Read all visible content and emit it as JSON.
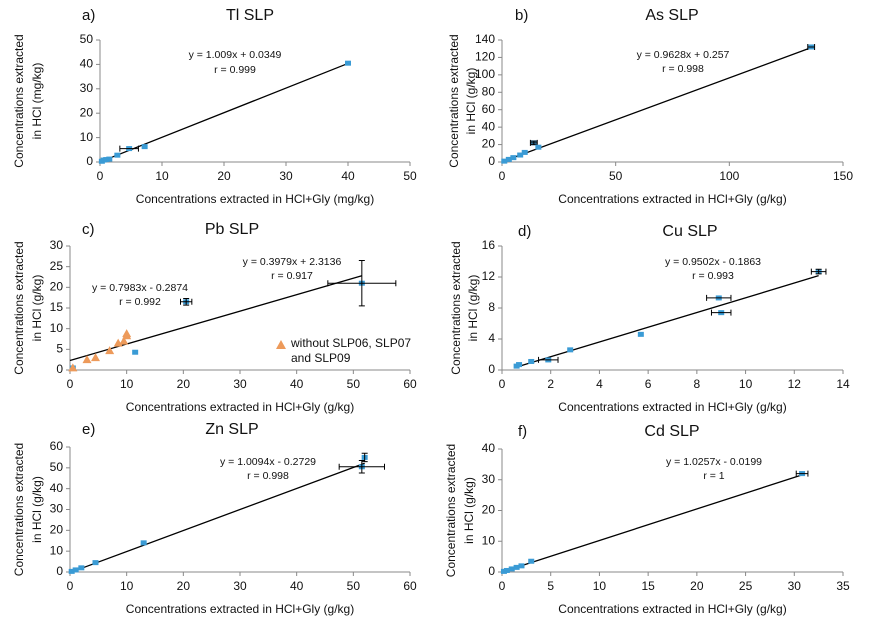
{
  "chart_data": [
    {
      "type": "scatter",
      "panel": "a)",
      "title": "Tl SLP",
      "xlabel": "Concentrations extracted in HCl+Gly (mg/kg)",
      "ylabel": [
        "Concentrations extracted",
        "in HCl  (mg/kg)"
      ],
      "xlim": [
        0,
        50
      ],
      "xticks": [
        0,
        10,
        20,
        30,
        40,
        50
      ],
      "ylim": [
        0,
        50
      ],
      "yticks": [
        0,
        10,
        20,
        30,
        40,
        50
      ],
      "series": [
        {
          "color": "#3a9bd5",
          "marker": "square",
          "x": [
            0.3,
            0.6,
            1,
            1.5,
            2.8,
            4.7,
            7.2,
            40
          ],
          "values": [
            0.3,
            0.8,
            1,
            1.2,
            2.8,
            5.5,
            6.3,
            40.5
          ],
          "xerr": [
            null,
            null,
            null,
            null,
            null,
            1.5,
            null,
            null
          ],
          "yerr": [
            null,
            null,
            null,
            null,
            null,
            null,
            null,
            null
          ]
        }
      ],
      "trendlines": [
        {
          "x": [
            0,
            40
          ],
          "values": [
            0.03,
            40.39
          ]
        }
      ],
      "annotations": [
        "y = 1.009x + 0.0349",
        "r = 0.999"
      ]
    },
    {
      "type": "scatter",
      "panel": "b)",
      "title": "As SLP",
      "xlabel": "Concentrations extracted in HCl+Gly (g/kg)",
      "ylabel": [
        "Concentrations extracted",
        "in HCl  (g/kg)"
      ],
      "xlim": [
        0,
        150
      ],
      "xticks": [
        0,
        50,
        100,
        150
      ],
      "ylim": [
        0,
        140
      ],
      "yticks": [
        0,
        20,
        40,
        60,
        80,
        100,
        120,
        140
      ],
      "series": [
        {
          "color": "#3a9bd5",
          "marker": "square",
          "x": [
            1,
            3,
            5,
            8,
            10,
            14,
            16,
            136
          ],
          "values": [
            1,
            3,
            5,
            8,
            11,
            22,
            17,
            132
          ],
          "xerr": [
            null,
            null,
            null,
            null,
            null,
            1.5,
            null,
            1.5
          ],
          "yerr": [
            null,
            null,
            null,
            null,
            null,
            2,
            null,
            null
          ]
        }
      ],
      "trendlines": [
        {
          "x": [
            0,
            136
          ],
          "values": [
            0.26,
            131.2
          ]
        }
      ],
      "annotations": [
        "y = 0.9628x + 0.257",
        "r = 0.998"
      ]
    },
    {
      "type": "scatter",
      "panel": "c)",
      "title": "Pb SLP",
      "xlabel": "Concentrations extracted in HCl+Gly (g/kg)",
      "ylabel": [
        "Concentrations extracted",
        "in HCl  (g/kg)"
      ],
      "xlim": [
        0,
        60
      ],
      "xticks": [
        0,
        10,
        20,
        30,
        40,
        50,
        60
      ],
      "ylim": [
        0,
        30
      ],
      "yticks": [
        0,
        5,
        10,
        15,
        20,
        25,
        30
      ],
      "series": [
        {
          "color": "#3a9bd5",
          "marker": "square",
          "x": [
            0.5,
            11.5,
            20.5,
            51.5
          ],
          "values": [
            0.5,
            4.3,
            16.5,
            21
          ],
          "xerr": [
            null,
            null,
            1,
            6
          ],
          "yerr": [
            null,
            null,
            0.8,
            5.5
          ]
        },
        {
          "name": "without SLP06, SLP07 and SLP09",
          "color": "#ed9a5a",
          "marker": "triangle",
          "x": [
            0.5,
            3,
            4.5,
            7,
            8.5,
            9.5,
            10,
            10
          ],
          "values": [
            0.5,
            2.5,
            3,
            4.7,
            6.5,
            7,
            8.3,
            8.8
          ],
          "xerr": [
            null,
            null,
            null,
            null,
            null,
            null,
            null,
            null
          ],
          "yerr": [
            null,
            null,
            null,
            null,
            null,
            null,
            null,
            null
          ]
        }
      ],
      "trendlines": [
        {
          "x": [
            0,
            51.5
          ],
          "values": [
            2.31,
            22.8
          ]
        }
      ],
      "annotations": [
        "y = 0.3979x + 2.3136",
        "r = 0.917",
        "y = 0.7983x - 0.2874",
        "r = 0.992"
      ]
    },
    {
      "type": "scatter",
      "panel": "d)",
      "title": "Cu SLP",
      "xlabel": "Concentrations extracted in HCl+Gly (g/kg)",
      "ylabel": [
        "Concentrations extracted",
        "in HCl  (g/kg)"
      ],
      "xlim": [
        0,
        14
      ],
      "xticks": [
        0,
        2,
        4,
        6,
        8,
        10,
        12,
        14
      ],
      "ylim": [
        0,
        16
      ],
      "yticks": [
        0,
        4,
        8,
        12,
        16
      ],
      "series": [
        {
          "color": "#3a9bd5",
          "marker": "square",
          "x": [
            0.6,
            0.7,
            1.2,
            1.9,
            2.8,
            5.7,
            8.9,
            9,
            13
          ],
          "values": [
            0.5,
            0.7,
            1.1,
            1.3,
            2.6,
            4.6,
            9.3,
            7.4,
            12.7
          ],
          "xerr": [
            null,
            null,
            null,
            0.4,
            null,
            null,
            0.5,
            0.4,
            0.3
          ],
          "yerr": [
            null,
            null,
            null,
            null,
            null,
            null,
            null,
            null,
            0.3
          ]
        }
      ],
      "trendlines": [
        {
          "x": [
            0.5,
            13
          ],
          "values": [
            0.29,
            12.17
          ]
        }
      ],
      "annotations": [
        "y = 0.9502x - 0.1863",
        "r = 0.993"
      ]
    },
    {
      "type": "scatter",
      "panel": "e)",
      "title": "Zn SLP",
      "xlabel": "Concentrations extracted in HCl+Gly (g/kg)",
      "ylabel": [
        "Concentrations extracted",
        "in HCl  (g/kg)"
      ],
      "xlim": [
        0,
        60
      ],
      "xticks": [
        0,
        10,
        20,
        30,
        40,
        50,
        60
      ],
      "ylim": [
        0,
        60
      ],
      "yticks": [
        0,
        10,
        20,
        30,
        40,
        50,
        60
      ],
      "series": [
        {
          "color": "#3a9bd5",
          "marker": "square",
          "x": [
            0.3,
            1,
            2,
            4.5,
            13,
            52,
            51.5
          ],
          "values": [
            0.3,
            1,
            2,
            4.5,
            14,
            55,
            50.5
          ],
          "xerr": [
            null,
            null,
            null,
            null,
            null,
            null,
            4
          ],
          "yerr": [
            null,
            null,
            null,
            null,
            null,
            2,
            3
          ]
        }
      ],
      "trendlines": [
        {
          "x": [
            0,
            52
          ],
          "values": [
            -0.27,
            52.2
          ]
        }
      ],
      "annotations": [
        "y = 1.0094x - 0.2729",
        "r = 0.998"
      ]
    },
    {
      "type": "scatter",
      "panel": "f)",
      "title": "Cd SLP",
      "xlabel": "Concentrations extracted in HCl+Gly (g/kg)",
      "ylabel": [
        "Concentrations extracted",
        "in HCl  (g/kg)"
      ],
      "xlim": [
        0,
        35
      ],
      "xticks": [
        0,
        5,
        10,
        15,
        20,
        25,
        30,
        35
      ],
      "ylim": [
        0,
        40
      ],
      "yticks": [
        0,
        10,
        20,
        30,
        40
      ],
      "series": [
        {
          "color": "#3a9bd5",
          "marker": "square",
          "x": [
            0.2,
            0.5,
            1,
            1.5,
            2,
            3,
            30.8
          ],
          "values": [
            0.2,
            0.5,
            1,
            1.5,
            2,
            3.5,
            32
          ],
          "xerr": [
            null,
            null,
            null,
            null,
            null,
            null,
            0.6
          ],
          "yerr": [
            null,
            null,
            null,
            null,
            null,
            null,
            null
          ]
        }
      ],
      "trendlines": [
        {
          "x": [
            0,
            31
          ],
          "values": [
            -0.02,
            31.8
          ]
        }
      ],
      "annotations": [
        "y = 1.0257x - 0.0199",
        "r = 1"
      ]
    }
  ]
}
